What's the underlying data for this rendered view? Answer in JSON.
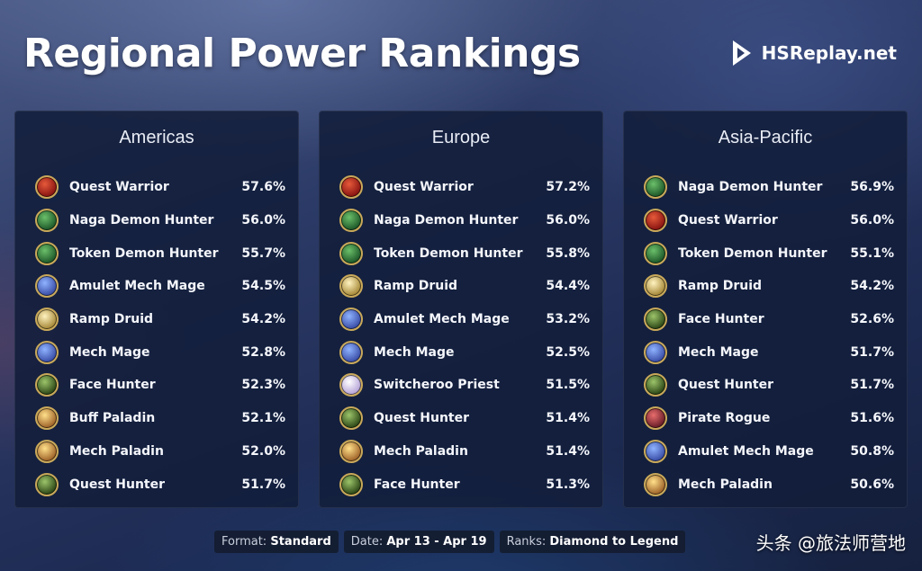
{
  "header": {
    "title": "Regional Power Rankings",
    "brand": "HSReplay.net"
  },
  "regions": [
    {
      "name": "Americas",
      "decks": [
        {
          "name": "Quest Warrior",
          "winrate": "57.6%",
          "icon": "warrior-icon"
        },
        {
          "name": "Naga Demon Hunter",
          "winrate": "56.0%",
          "icon": "demon-hunter-icon"
        },
        {
          "name": "Token Demon Hunter",
          "winrate": "55.7%",
          "icon": "demon-hunter-icon"
        },
        {
          "name": "Amulet Mech Mage",
          "winrate": "54.5%",
          "icon": "mage-icon"
        },
        {
          "name": "Ramp Druid",
          "winrate": "54.2%",
          "icon": "druid-icon"
        },
        {
          "name": "Mech Mage",
          "winrate": "52.8%",
          "icon": "mage-icon"
        },
        {
          "name": "Face Hunter",
          "winrate": "52.3%",
          "icon": "hunter-icon"
        },
        {
          "name": "Buff Paladin",
          "winrate": "52.1%",
          "icon": "paladin-icon"
        },
        {
          "name": "Mech Paladin",
          "winrate": "52.0%",
          "icon": "paladin-icon"
        },
        {
          "name": "Quest Hunter",
          "winrate": "51.7%",
          "icon": "hunter-icon"
        }
      ]
    },
    {
      "name": "Europe",
      "decks": [
        {
          "name": "Quest Warrior",
          "winrate": "57.2%",
          "icon": "warrior-icon"
        },
        {
          "name": "Naga Demon Hunter",
          "winrate": "56.0%",
          "icon": "demon-hunter-icon"
        },
        {
          "name": "Token Demon Hunter",
          "winrate": "55.8%",
          "icon": "demon-hunter-icon"
        },
        {
          "name": "Ramp Druid",
          "winrate": "54.4%",
          "icon": "druid-icon"
        },
        {
          "name": "Amulet Mech Mage",
          "winrate": "53.2%",
          "icon": "mage-icon"
        },
        {
          "name": "Mech Mage",
          "winrate": "52.5%",
          "icon": "mage-icon"
        },
        {
          "name": "Switcheroo Priest",
          "winrate": "51.5%",
          "icon": "priest-icon"
        },
        {
          "name": "Quest Hunter",
          "winrate": "51.4%",
          "icon": "hunter-icon"
        },
        {
          "name": "Mech Paladin",
          "winrate": "51.4%",
          "icon": "paladin-icon"
        },
        {
          "name": "Face Hunter",
          "winrate": "51.3%",
          "icon": "hunter-icon"
        }
      ]
    },
    {
      "name": "Asia-Pacific",
      "decks": [
        {
          "name": "Naga Demon Hunter",
          "winrate": "56.9%",
          "icon": "demon-hunter-icon"
        },
        {
          "name": "Quest Warrior",
          "winrate": "56.0%",
          "icon": "warrior-icon"
        },
        {
          "name": "Token Demon Hunter",
          "winrate": "55.1%",
          "icon": "demon-hunter-icon"
        },
        {
          "name": "Ramp Druid",
          "winrate": "54.2%",
          "icon": "druid-icon"
        },
        {
          "name": "Face Hunter",
          "winrate": "52.6%",
          "icon": "hunter-icon"
        },
        {
          "name": "Mech Mage",
          "winrate": "51.7%",
          "icon": "mage-icon"
        },
        {
          "name": "Quest Hunter",
          "winrate": "51.7%",
          "icon": "hunter-icon"
        },
        {
          "name": "Pirate Rogue",
          "winrate": "51.6%",
          "icon": "rogue-icon"
        },
        {
          "name": "Amulet Mech Mage",
          "winrate": "50.8%",
          "icon": "mage-icon"
        },
        {
          "name": "Mech Paladin",
          "winrate": "50.6%",
          "icon": "paladin-icon"
        }
      ]
    }
  ],
  "footer": {
    "format_label": "Format:",
    "format_value": "Standard",
    "date_label": "Date:",
    "date_value": "Apr 13 - Apr 19",
    "ranks_label": "Ranks:",
    "ranks_value": "Diamond to Legend"
  },
  "watermark": "头条 @旅法师营地"
}
